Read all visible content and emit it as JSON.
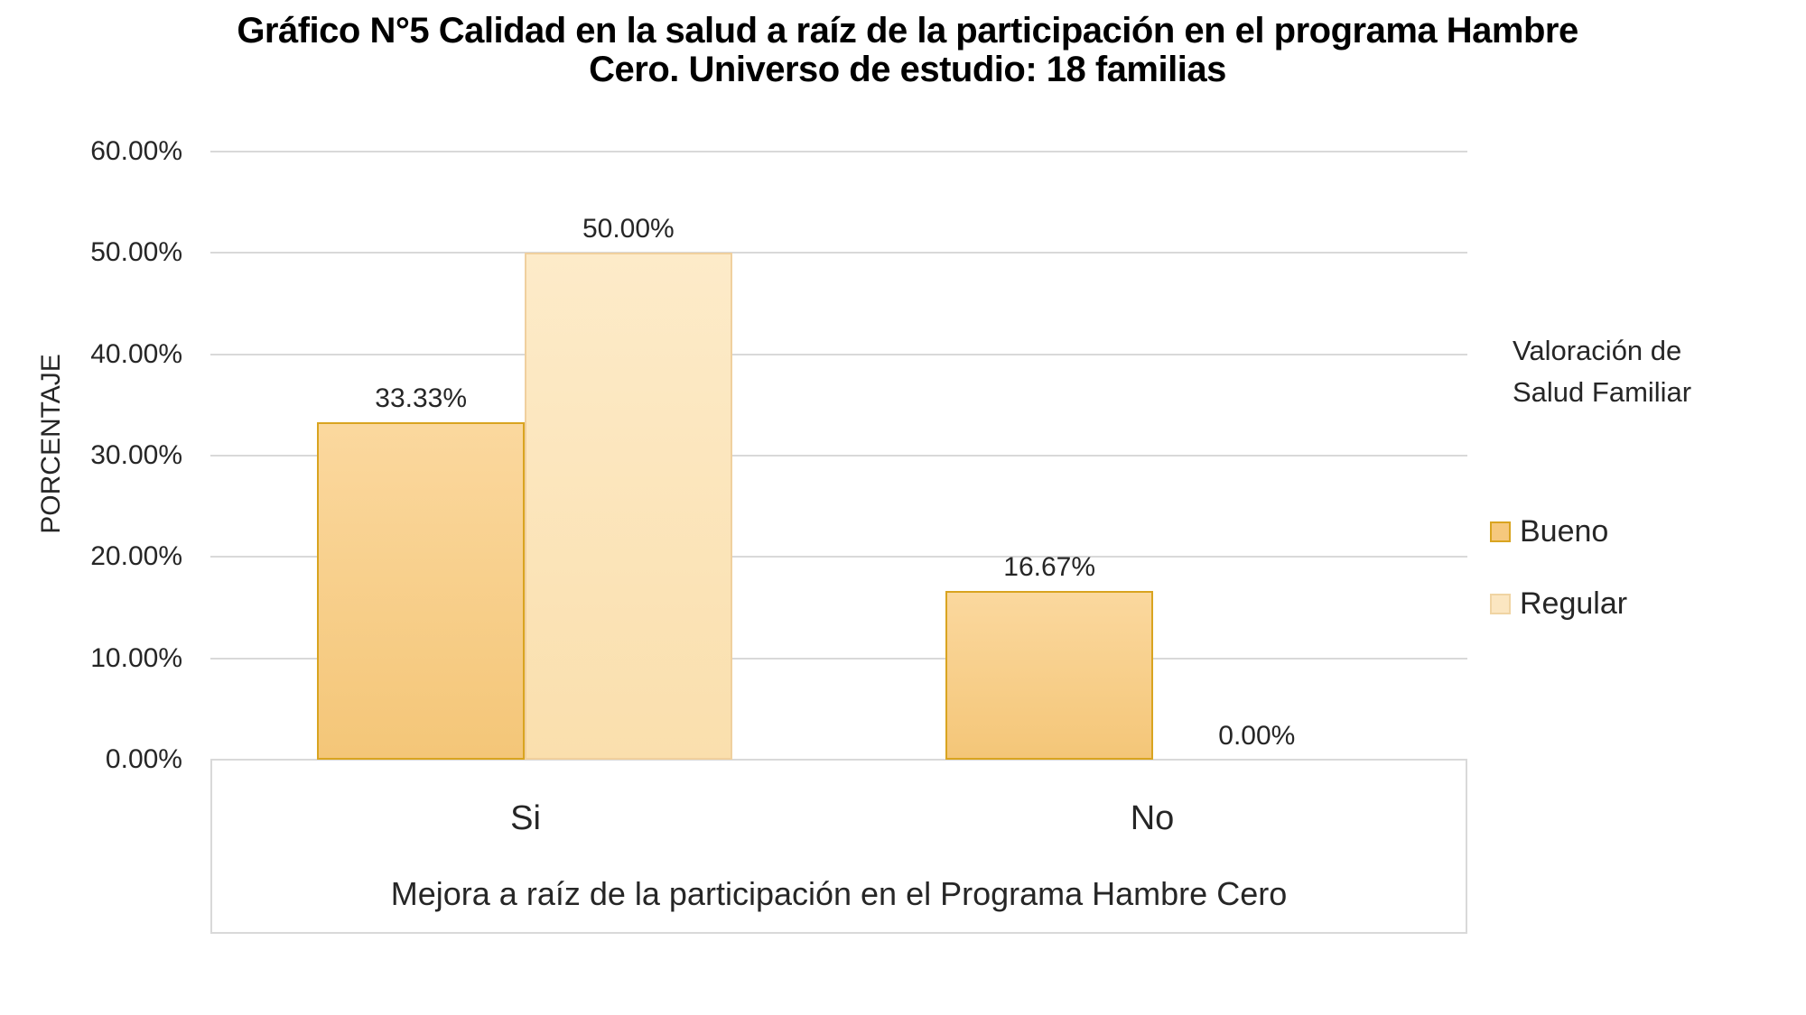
{
  "title": {
    "line1": "Gráfico N°5 Calidad en la salud a raíz de la participación en el programa Hambre",
    "line2": "Cero. Universo de estudio: 18 familias"
  },
  "y_axis": {
    "title": "PORCENTAJE",
    "ticks": [
      {
        "value": 0,
        "label": "0.00%"
      },
      {
        "value": 10,
        "label": "10.00%"
      },
      {
        "value": 20,
        "label": "20.00%"
      },
      {
        "value": 30,
        "label": "30.00%"
      },
      {
        "value": 40,
        "label": "40.00%"
      },
      {
        "value": 50,
        "label": "50.00%"
      },
      {
        "value": 60,
        "label": "60.00%"
      }
    ]
  },
  "x_axis": {
    "title": "Mejora a raíz de la participación en el Programa Hambre Cero"
  },
  "legend": {
    "title": "Valoración de Salud Familiar",
    "items": [
      {
        "label": "Bueno",
        "swatch_fill": "#F6C87D",
        "swatch_border": "#D9A420"
      },
      {
        "label": "Regular",
        "swatch_fill": "#FBE6C1",
        "swatch_border": "#F0D4A3"
      }
    ]
  },
  "chart_data": {
    "type": "bar",
    "categories": [
      "Si",
      "No"
    ],
    "series": [
      {
        "name": "Bueno",
        "values": [
          33.33,
          16.67
        ],
        "labels": [
          "33.33%",
          "16.67%"
        ]
      },
      {
        "name": "Regular",
        "values": [
          50.0,
          0.0
        ],
        "labels": [
          "50.00%",
          "0.00%"
        ]
      }
    ],
    "title": "Gráfico N°5 Calidad en la salud a raíz de la participación en el programa Hambre Cero. Universo de estudio: 18 familias",
    "xlabel": "Mejora a raíz de la participación en el Programa Hambre Cero",
    "ylabel": "PORCENTAJE",
    "ylim": [
      0,
      60
    ],
    "ytick_step": 10,
    "grid": true,
    "legend_position": "right"
  },
  "colors": {
    "gridline": "#D9D9D9",
    "text": "#262626",
    "title_text": "#000000",
    "series_styles": [
      {
        "name": "Bueno",
        "fill_top": "#FBD89E",
        "fill_bottom": "#F4C678",
        "border": "#D9A420"
      },
      {
        "name": "Regular",
        "fill_top": "#FDEBC9",
        "fill_bottom": "#FADFAD",
        "border": "#F0D09E"
      }
    ]
  }
}
